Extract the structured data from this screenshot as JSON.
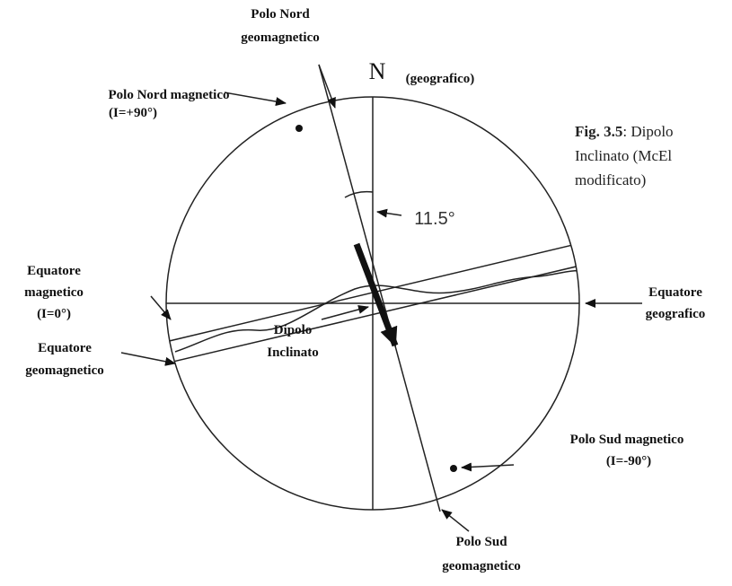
{
  "labels": [
    {
      "lines": [
        "Polo Nord",
        "geomagnetico"
      ]
    },
    {
      "lines": [
        "N"
      ]
    },
    {
      "lines": [
        "(geografico)"
      ]
    },
    {
      "lines": [
        "Polo Nord magnetico"
      ]
    },
    {
      "lines": [
        "(I=+90°)"
      ]
    },
    {
      "lines": [
        "11.5°"
      ]
    },
    {
      "lines": [
        "Equatore",
        "magnetico",
        "(I=0°)"
      ]
    },
    {
      "lines": [
        "Equatore",
        "geografico"
      ]
    },
    {
      "lines": [
        "Equatore",
        "geomagnetico"
      ]
    },
    {
      "lines": [
        "Dipolo",
        "Inclinato"
      ]
    },
    {
      "lines": [
        "Polo Sud magnetico"
      ]
    },
    {
      "lines": [
        "(I=-90°)"
      ]
    },
    {
      "lines": [
        "Polo Sud",
        "geomagnetico"
      ]
    }
  ],
  "caption": {
    "figure": "Fig. 3.5",
    "lines": [
      ": Dipolo",
      "Inclinato (McEl",
      "modificato)"
    ]
  }
}
